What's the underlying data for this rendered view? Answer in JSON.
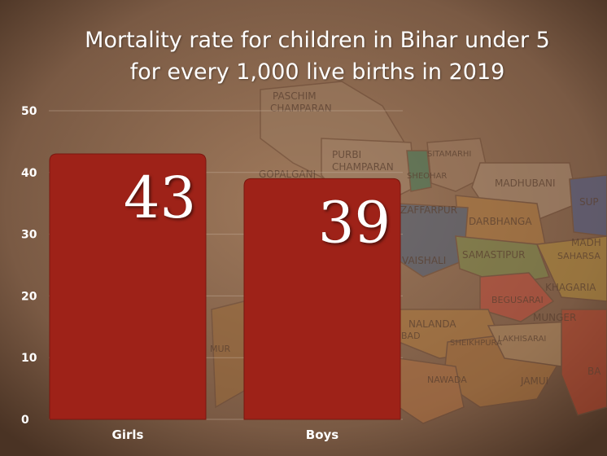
{
  "title_line1": "Mortality rate for children in Bihar under 5",
  "title_line2": "for every 1,000 live births in 2019",
  "map_labels": [
    "PASCHIM",
    "CHAMPARAN",
    "PURBI",
    "CHAMPARAN",
    "GOPALGANJ",
    "SITAMARHI",
    "SHEOHAR",
    "MADHUBANI",
    "ZAFFARPUR",
    "DARBHANGA",
    "VAISHALI",
    "SAMASTIPUR",
    "SAHARSA",
    "KHAGARIA",
    "BEGUSARAI",
    "MUNGER",
    "NALANDA",
    "SHEIKHPURA",
    "LAKHISARAI",
    "NAWADA",
    "JAMUI",
    "SUP",
    "MADH",
    "BAD",
    "MUR",
    "BA"
  ],
  "colors": {
    "bar": "#9e2218",
    "bar_edge": "#7a170f",
    "text": "#ffffff",
    "grid": "#c9b3a0"
  },
  "chart_data": {
    "type": "bar",
    "title": "Mortality rate for children in Bihar under 5 for every 1,000 live births in 2019",
    "categories": [
      "Girls",
      "Boys"
    ],
    "values": [
      43,
      39
    ],
    "data_labels": [
      "43",
      "39"
    ],
    "xlabel": "",
    "ylabel": "",
    "ylim": [
      0,
      50
    ],
    "yticks": [
      0,
      10,
      20,
      30,
      40,
      50
    ],
    "grid": true,
    "legend": "none"
  }
}
